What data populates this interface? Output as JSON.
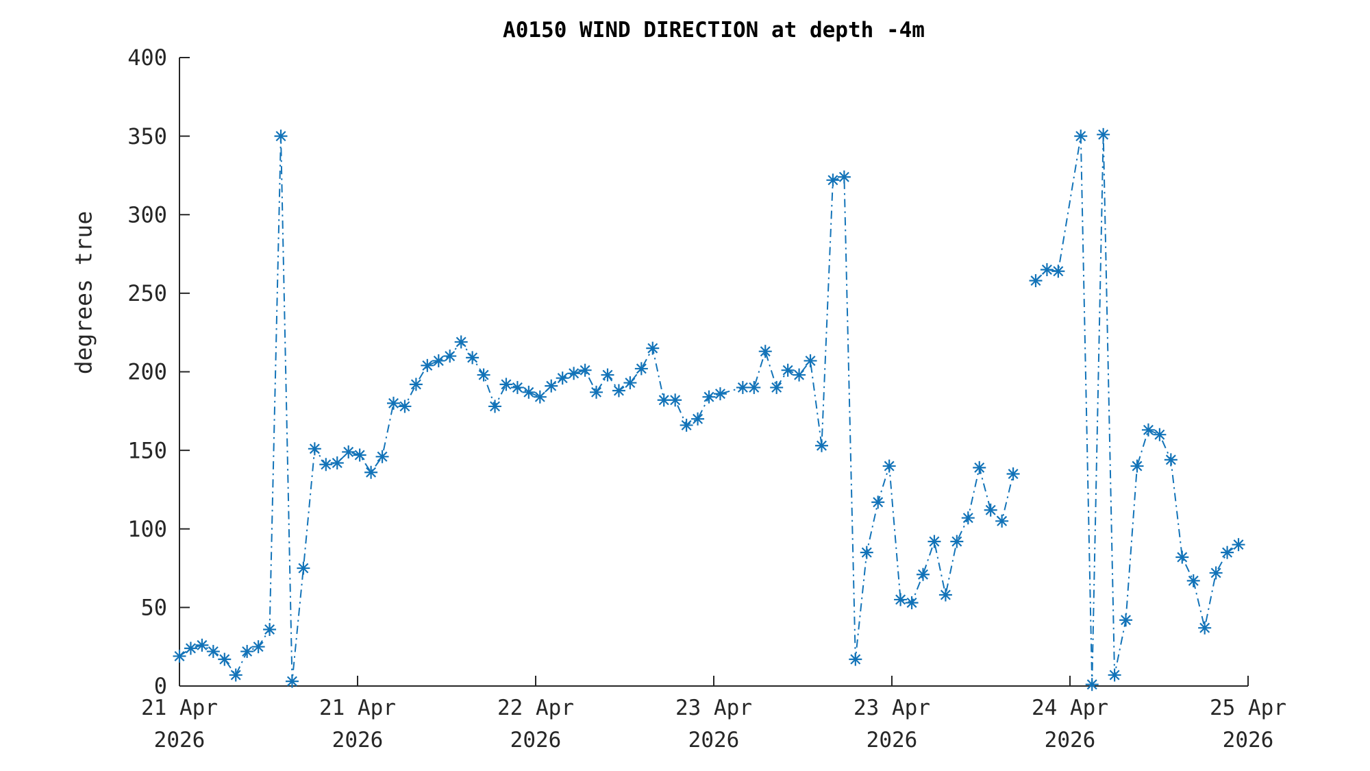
{
  "chart_data": {
    "type": "line",
    "title": "A0150 WIND DIRECTION at depth -4m",
    "ylabel": "degrees true",
    "xlabel": "",
    "ylim": [
      0,
      400
    ],
    "yticks": [
      0,
      50,
      100,
      150,
      200,
      250,
      300,
      350,
      400
    ],
    "xlim_hours": [
      0,
      96
    ],
    "x_unit": "hours since 21 Apr 2026 00:00",
    "xticks": [
      {
        "hour": 0,
        "label_line1": "21 Apr",
        "label_line2": "2026"
      },
      {
        "hour": 16,
        "label_line1": "21 Apr",
        "label_line2": "2026"
      },
      {
        "hour": 32,
        "label_line1": "22 Apr",
        "label_line2": "2026"
      },
      {
        "hour": 48,
        "label_line1": "23 Apr",
        "label_line2": "2026"
      },
      {
        "hour": 64,
        "label_line1": "23 Apr",
        "label_line2": "2026"
      },
      {
        "hour": 80,
        "label_line1": "24 Apr",
        "label_line2": "2026"
      },
      {
        "hour": 96,
        "label_line1": "25 Apr",
        "label_line2": "2026"
      }
    ],
    "grid": false,
    "legend_position": "none",
    "line_style": "dash-dot",
    "marker": "asterisk",
    "line_color": "#1273b8",
    "axis_color": "#262626",
    "title_color": "#000000",
    "series": [
      {
        "name": "wind direction segment 1",
        "start_hour": 0,
        "interval_hours": 1,
        "values": [
          19,
          24,
          26,
          22,
          17,
          7,
          22,
          25,
          36,
          350,
          3,
          75,
          151,
          141,
          142,
          149,
          147,
          136,
          146,
          180,
          178,
          192,
          204,
          207,
          210,
          219,
          209,
          198,
          178,
          192,
          190,
          187,
          184,
          191,
          196,
          199,
          201,
          187,
          198,
          188,
          193,
          202,
          215,
          182,
          182,
          166,
          170,
          184,
          186,
          null,
          190,
          190,
          213,
          190,
          201,
          198,
          207,
          153,
          322,
          324,
          17,
          85,
          117,
          140,
          55,
          53,
          71,
          92,
          58,
          92,
          107,
          139,
          112,
          105,
          135
        ]
      },
      {
        "name": "wind direction segment 2",
        "start_hour": 76,
        "interval_hours": 1,
        "values": [
          258,
          265,
          264,
          null,
          350,
          1,
          351,
          7,
          42,
          140,
          163,
          160,
          144,
          82,
          67,
          37,
          72,
          85,
          90
        ]
      }
    ]
  }
}
